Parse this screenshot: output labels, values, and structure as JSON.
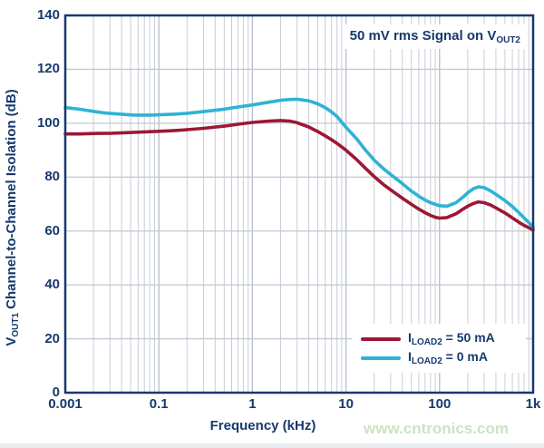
{
  "page": {
    "watermark": "www.cntronics.com",
    "colors": {
      "navy": "#17396d",
      "grid_minor": "#c9cdd6",
      "grid_major": "#b6bdca",
      "grid_horizontal": "#c2c8d3",
      "series_50mA": "#9e1734",
      "series_0mA": "#2eb3d4",
      "watermark_green": "#cbe4c0",
      "background": "#ffffff"
    }
  },
  "chart_data": {
    "type": "line",
    "x_scale": "log",
    "grid": true,
    "title": "",
    "annotation": "50 mV rms Signal on VOUT2",
    "annotation_parts": {
      "pre": "50 mV rms Signal on V",
      "sub": "OUT2"
    },
    "xlabel": "Frequency (kHz)",
    "ylabel": "VOUT1 Channel-to-Channel Isolation (dB)",
    "ylabel_parts": {
      "pre": "V",
      "sub": "OUT1",
      "rest": " Channel-to-Channel Isolation (dB)"
    },
    "x_tick_labels": [
      "0.001",
      "0.1",
      "1",
      "10",
      "100",
      "1k"
    ],
    "x_tick_values": [
      0.001,
      0.1,
      1,
      10,
      100,
      1000
    ],
    "y_ticks": [
      0,
      20,
      40,
      60,
      80,
      100,
      120,
      140
    ],
    "ylim": [
      0,
      140
    ],
    "legend_position": "lower right",
    "series": [
      {
        "name": "ILOAD2 = 50 mA",
        "name_parts": {
          "pre": "I",
          "sub": "LOAD2",
          "rest": " = 50 mA"
        },
        "color": "#9e1734",
        "points": [
          [
            0.001,
            96.0
          ],
          [
            0.002,
            96.0
          ],
          [
            0.005,
            96.2
          ],
          [
            0.01,
            96.3
          ],
          [
            0.02,
            96.5
          ],
          [
            0.05,
            96.8
          ],
          [
            0.1,
            97.0
          ],
          [
            0.15,
            97.3
          ],
          [
            0.2,
            97.6
          ],
          [
            0.3,
            98.1
          ],
          [
            0.5,
            98.9
          ],
          [
            0.7,
            99.6
          ],
          [
            1,
            100.3
          ],
          [
            1.5,
            100.8
          ],
          [
            2,
            101.0
          ],
          [
            2.5,
            100.8
          ],
          [
            3,
            100.2
          ],
          [
            4,
            98.6
          ],
          [
            5,
            96.9
          ],
          [
            6,
            95.3
          ],
          [
            7,
            93.9
          ],
          [
            8,
            92.5
          ],
          [
            10,
            90.0
          ],
          [
            13,
            86.5
          ],
          [
            16,
            83.4
          ],
          [
            20,
            80.2
          ],
          [
            25,
            77.3
          ],
          [
            30,
            75.3
          ],
          [
            40,
            72.2
          ],
          [
            50,
            69.9
          ],
          [
            60,
            68.1
          ],
          [
            70,
            66.8
          ],
          [
            80,
            65.8
          ],
          [
            90,
            65.1
          ],
          [
            100,
            64.8
          ],
          [
            120,
            65.0
          ],
          [
            150,
            66.4
          ],
          [
            180,
            68.2
          ],
          [
            200,
            69.2
          ],
          [
            230,
            70.2
          ],
          [
            260,
            70.8
          ],
          [
            300,
            70.5
          ],
          [
            350,
            69.7
          ],
          [
            400,
            68.6
          ],
          [
            500,
            66.7
          ],
          [
            600,
            64.9
          ],
          [
            700,
            63.3
          ],
          [
            800,
            62.1
          ],
          [
            900,
            61.2
          ],
          [
            1000,
            60.4
          ]
        ]
      },
      {
        "name": "ILOAD2 = 0 mA",
        "name_parts": {
          "pre": "I",
          "sub": "LOAD2",
          "rest": " = 0 mA"
        },
        "color": "#2eb3d4",
        "points": [
          [
            0.001,
            105.8
          ],
          [
            0.002,
            105.2
          ],
          [
            0.004,
            104.4
          ],
          [
            0.007,
            103.8
          ],
          [
            0.01,
            103.6
          ],
          [
            0.02,
            103.2
          ],
          [
            0.03,
            103.0
          ],
          [
            0.05,
            103.0
          ],
          [
            0.07,
            103.0
          ],
          [
            0.1,
            103.1
          ],
          [
            0.15,
            103.4
          ],
          [
            0.2,
            103.7
          ],
          [
            0.3,
            104.3
          ],
          [
            0.5,
            105.2
          ],
          [
            0.7,
            106.0
          ],
          [
            1,
            106.8
          ],
          [
            1.5,
            107.8
          ],
          [
            2,
            108.5
          ],
          [
            2.5,
            108.8
          ],
          [
            3,
            108.9
          ],
          [
            4,
            108.3
          ],
          [
            5,
            107.2
          ],
          [
            6,
            105.8
          ],
          [
            7,
            104.2
          ],
          [
            8,
            102.5
          ],
          [
            10,
            98.5
          ],
          [
            13,
            94.2
          ],
          [
            16,
            90.2
          ],
          [
            20,
            86.3
          ],
          [
            25,
            83.2
          ],
          [
            30,
            81.0
          ],
          [
            40,
            77.6
          ],
          [
            50,
            74.8
          ],
          [
            60,
            72.9
          ],
          [
            70,
            71.5
          ],
          [
            80,
            70.5
          ],
          [
            100,
            69.4
          ],
          [
            120,
            69.2
          ],
          [
            150,
            70.5
          ],
          [
            180,
            72.7
          ],
          [
            200,
            74.2
          ],
          [
            230,
            75.7
          ],
          [
            260,
            76.4
          ],
          [
            300,
            76.1
          ],
          [
            350,
            74.9
          ],
          [
            400,
            73.6
          ],
          [
            500,
            71.3
          ],
          [
            600,
            69.1
          ],
          [
            700,
            66.9
          ],
          [
            800,
            64.9
          ],
          [
            900,
            63.1
          ],
          [
            1000,
            61.4
          ]
        ]
      }
    ]
  }
}
